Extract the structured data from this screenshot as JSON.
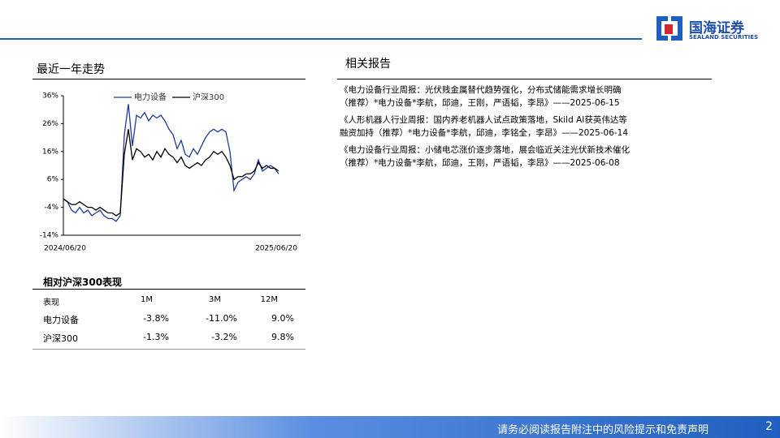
{
  "header": {
    "logo_name": "国海证券",
    "logo_sub": "SEALAND SECURITIES"
  },
  "trend": {
    "title": "最近一年走势"
  },
  "chart_data": {
    "type": "line",
    "categories": [
      "2024/06/20",
      null,
      null,
      null,
      null,
      null,
      null,
      null,
      null,
      null,
      null,
      null,
      null,
      null,
      null,
      null,
      null,
      null,
      null,
      null,
      null,
      null,
      null,
      null,
      null,
      null,
      null,
      null,
      null,
      null,
      null,
      null,
      null,
      null,
      null,
      null,
      null,
      null,
      null,
      null,
      null,
      null,
      null,
      null,
      null,
      null,
      null,
      null,
      null,
      null,
      null,
      null,
      null,
      "2025/06/20"
    ],
    "series": [
      {
        "name": "电力设备",
        "color": "#1f3c99",
        "values": [
          -1,
          -2,
          -5,
          -6,
          -4,
          -6,
          -5,
          -7,
          -6,
          -5,
          -7,
          -8,
          -8,
          -9,
          -7,
          22,
          33,
          18,
          29,
          28,
          30,
          27,
          29,
          28,
          29,
          27,
          24,
          22,
          17,
          20,
          15,
          14,
          17,
          15,
          18,
          21,
          23,
          24,
          23,
          24,
          23,
          16,
          2,
          5,
          6,
          7,
          6,
          8,
          13,
          9,
          10,
          11,
          10,
          8
        ]
      },
      {
        "name": "沪深300",
        "color": "#000000",
        "values": [
          -1,
          -2,
          -3,
          -3,
          -2,
          -3,
          -4,
          -4,
          -5,
          -4,
          -5,
          -6,
          -6,
          -7,
          -6,
          15,
          24,
          13,
          17,
          16,
          14,
          15,
          13,
          16,
          14,
          17,
          15,
          14,
          12,
          14,
          11,
          10,
          11,
          12,
          11,
          13,
          14,
          16,
          15,
          16,
          14,
          11,
          6,
          7,
          7,
          8,
          8,
          9,
          12,
          10,
          11,
          10,
          10,
          9
        ]
      }
    ],
    "ylim": [
      -14,
      36
    ],
    "yticks": [
      {
        "value": 36,
        "label": "36%"
      },
      {
        "value": 26,
        "label": "26%"
      },
      {
        "value": 16,
        "label": "16%"
      },
      {
        "value": 6,
        "label": "6%"
      },
      {
        "value": -4,
        "label": "-4%"
      },
      {
        "value": -14,
        "label": "-14%"
      }
    ],
    "legend": "top"
  },
  "table": {
    "title": "相对沪深300表现",
    "header": [
      "表现",
      "1M",
      "3M",
      "12M"
    ],
    "rows": [
      [
        "电力设备",
        "-3.8%",
        "-11.0%",
        "9.0%"
      ],
      [
        "沪深300",
        "-1.3%",
        "-3.2%",
        "9.8%"
      ]
    ]
  },
  "reports": {
    "title": "相关报告",
    "items": [
      [
        "《电力设备行业周报：光伏贱金属替代趋势强化，分布式储能需求增长明确",
        "（推荐）*电力设备*李航，邱迪，王刚，严语韬，李昂》——2025-06-15"
      ],
      [
        "《人形机器人行业周报：国内养老机器人试点政策落地，Skild AI获英伟达等",
        "融资加持（推荐）*电力设备*李航，邱迪，李铭全，李昂》——2025-06-14"
      ],
      [
        "《电力设备行业周报：小储电芯涨价逐步落地，展会临近关注光伏新技术催化",
        "（推荐）*电力设备*李航，邱迪，王刚，严语韬，李昂》——2025-06-08"
      ]
    ]
  },
  "footer": {
    "disclaimer": "请务必阅读报告附注中的风险提示和免责声明",
    "page": "2"
  }
}
